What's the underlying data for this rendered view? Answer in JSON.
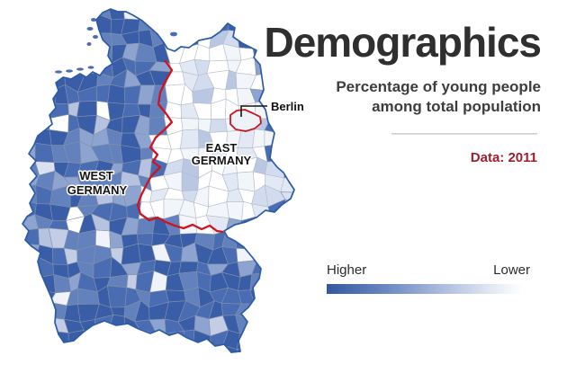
{
  "header": {
    "title": "Demographics",
    "subtitle_line1": "Percentage of young people",
    "subtitle_line2": "among total population",
    "data_note": "Data: 2011",
    "data_note_color": "#9e1e2e"
  },
  "legend": {
    "higher_label": "Higher",
    "lower_label": "Lower",
    "gradient": [
      "#35579f",
      "#6d89c4",
      "#a9b9dc",
      "#e0e6f2",
      "#ffffff"
    ]
  },
  "map": {
    "labels": {
      "west_line1": "WEST",
      "west_line2": "GERMANY",
      "east_line1": "EAST",
      "east_line2": "GERMANY",
      "berlin": "Berlin"
    },
    "colors": {
      "national_border": "#2a5ca8",
      "former_border": "#cf1420",
      "berlin_outline": "#cf1420",
      "berlin_fill": "#edf1f8",
      "district_border_west": "#8291a9",
      "district_border_east": "#b4bcc8",
      "pointer": "#141414",
      "island_fill": "#4a6cb3"
    },
    "palette_west_north": [
      [
        "#3a5da8",
        0.45
      ],
      [
        "#4a6cb3",
        0.25
      ],
      [
        "#6381bd",
        0.15
      ],
      [
        "#8ea4d0",
        0.08
      ],
      [
        "#c3cde6",
        0.05
      ],
      [
        "#eef2f8",
        0.02
      ]
    ],
    "palette_west_mid": [
      [
        "#3a5da8",
        0.16
      ],
      [
        "#4a6cb3",
        0.2
      ],
      [
        "#6381bd",
        0.2
      ],
      [
        "#8ea4d0",
        0.18
      ],
      [
        "#b5c3e0",
        0.12
      ],
      [
        "#dae1f0",
        0.09
      ],
      [
        "#ffffff",
        0.05
      ]
    ],
    "palette_west_south": [
      [
        "#3a5da8",
        0.34
      ],
      [
        "#4a6cb3",
        0.3
      ],
      [
        "#6381bd",
        0.15
      ],
      [
        "#8ea4d0",
        0.1
      ],
      [
        "#c3cde6",
        0.07
      ],
      [
        "#f0f4fa",
        0.04
      ]
    ],
    "palette_east": [
      [
        "#ffffff",
        0.45
      ],
      [
        "#f2f5fa",
        0.2
      ],
      [
        "#e3e9f4",
        0.15
      ],
      [
        "#d3dcee",
        0.12
      ],
      [
        "#b9c7e2",
        0.08
      ]
    ]
  }
}
